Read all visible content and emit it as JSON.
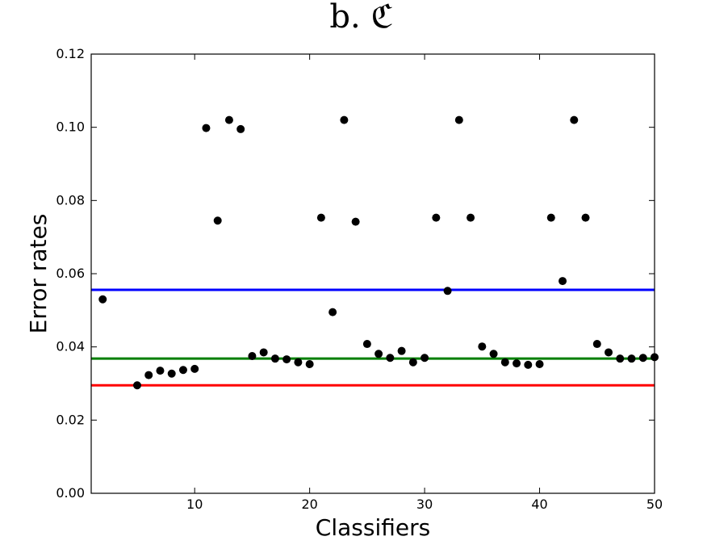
{
  "chart_data": {
    "type": "scatter",
    "title": "b. ℭ",
    "xlabel": "Classifiers",
    "ylabel": "Error rates",
    "xlim": [
      1,
      50
    ],
    "ylim": [
      0,
      0.12
    ],
    "xticks": [
      10,
      20,
      30,
      40,
      50
    ],
    "yticks": [
      0.0,
      0.02,
      0.04,
      0.06,
      0.08,
      0.1,
      0.12
    ],
    "xtick_labels": [
      "10",
      "20",
      "30",
      "40",
      "50"
    ],
    "ytick_labels": [
      "0.00",
      "0.02",
      "0.04",
      "0.06",
      "0.08",
      "0.10",
      "0.12"
    ],
    "grid": false,
    "points": {
      "x": [
        2,
        5,
        6,
        7,
        8,
        9,
        10,
        11,
        12,
        13,
        14,
        15,
        16,
        17,
        18,
        19,
        20,
        21,
        22,
        23,
        24,
        25,
        26,
        27,
        28,
        29,
        30,
        31,
        32,
        33,
        34,
        35,
        36,
        37,
        38,
        39,
        40,
        41,
        42,
        43,
        44,
        45,
        46,
        47,
        48,
        49,
        50
      ],
      "y": [
        0.053,
        0.0295,
        0.0323,
        0.0335,
        0.0327,
        0.0337,
        0.034,
        0.0998,
        0.0745,
        0.102,
        0.0995,
        0.0375,
        0.0385,
        0.0368,
        0.0366,
        0.0358,
        0.0353,
        0.0753,
        0.0495,
        0.102,
        0.0742,
        0.0408,
        0.0381,
        0.037,
        0.0389,
        0.0358,
        0.037,
        0.0753,
        0.0553,
        0.102,
        0.0753,
        0.0401,
        0.0381,
        0.0358,
        0.0355,
        0.0351,
        0.0353,
        0.0753,
        0.058,
        0.102,
        0.0753,
        0.0408,
        0.0385,
        0.0368,
        0.0368,
        0.037,
        0.0372
      ],
      "color": "#000000"
    },
    "reference_lines": [
      {
        "y": 0.0556,
        "color": "#0000ff"
      },
      {
        "y": 0.0368,
        "color": "#007f00"
      },
      {
        "y": 0.0295,
        "color": "#ff0000"
      }
    ]
  }
}
